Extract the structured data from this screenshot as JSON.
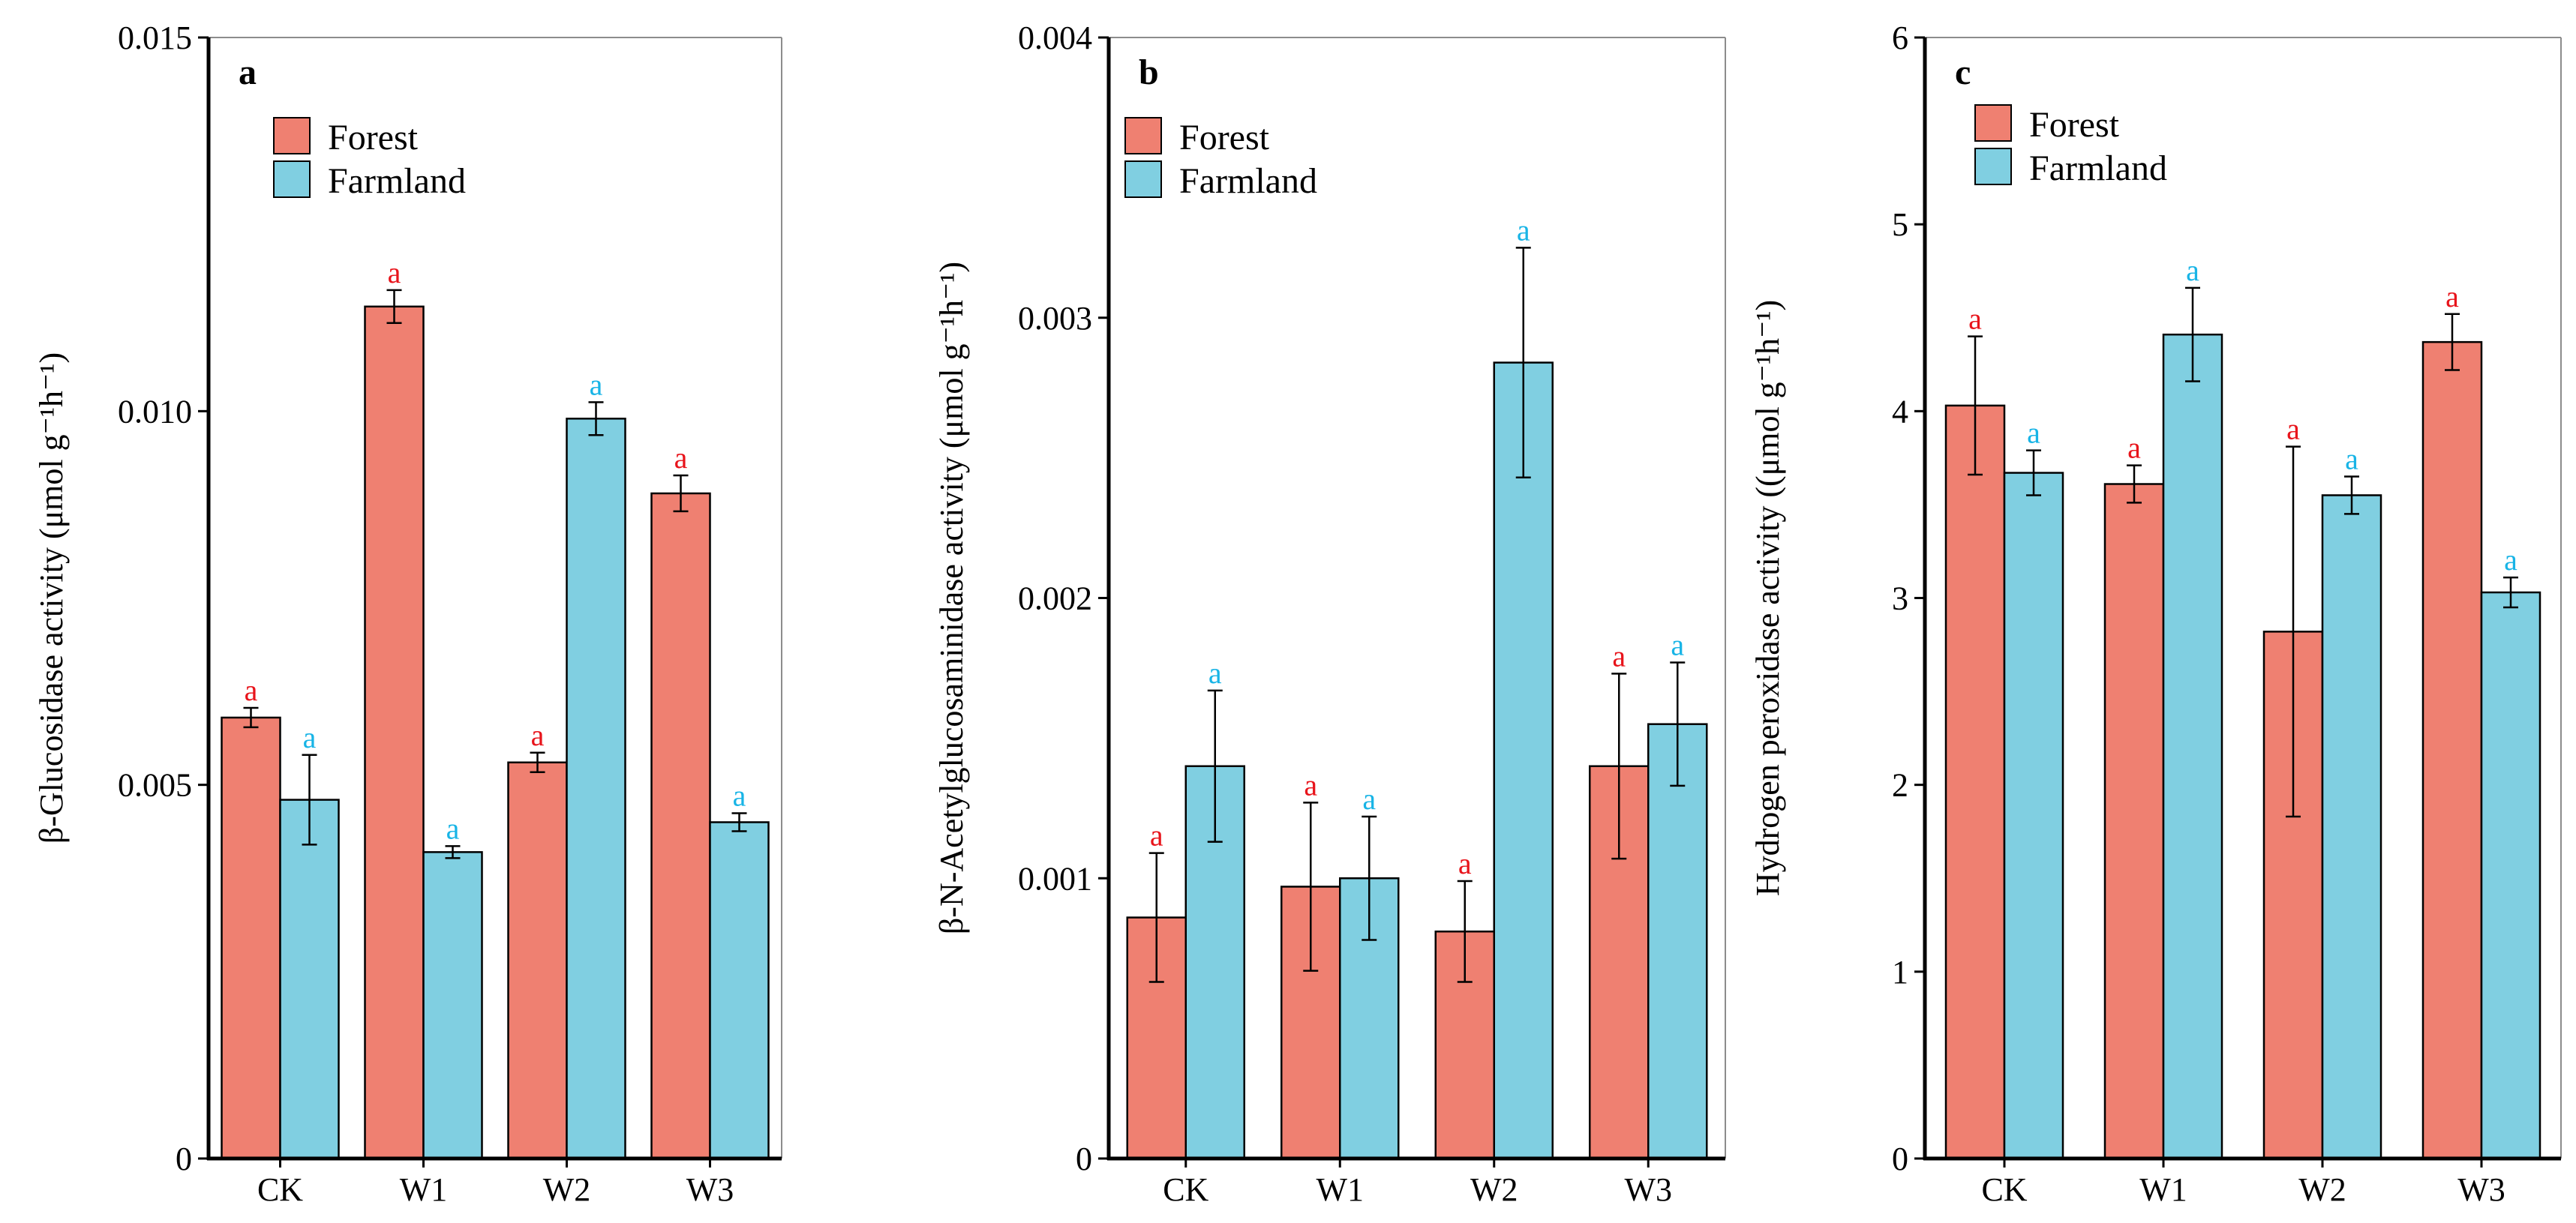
{
  "colors": {
    "forest": "#ef8071",
    "farmland": "#80cfe1",
    "forest_letter": "#e8141b",
    "farmland_letter": "#18b4e6",
    "axis": "#000000",
    "panel_border": "#8c8c8c"
  },
  "legend": [
    "Forest",
    "Farmland"
  ],
  "chart_data": [
    {
      "type": "bar",
      "panel": "a",
      "ylabel": "β-Glucosidase activity (μmol g⁻¹h⁻¹)",
      "xlabel": "",
      "categories": [
        "CK",
        "W1",
        "W2",
        "W3"
      ],
      "ylim": [
        0,
        0.015
      ],
      "yticks": [
        0,
        0.005,
        0.01,
        0.015
      ],
      "ytick_labels": [
        "0",
        "0.005",
        "0.010",
        "0.015"
      ],
      "series": [
        {
          "name": "Forest",
          "values": [
            0.0059,
            0.0114,
            0.0053,
            0.0089
          ],
          "errors": [
            0.00013,
            0.00022,
            0.00013,
            0.00024
          ],
          "letters": [
            "a",
            "a",
            "a",
            "a"
          ]
        },
        {
          "name": "Farmland",
          "values": [
            0.0048,
            0.0041,
            0.0099,
            0.0045
          ],
          "errors": [
            0.0006,
            8e-05,
            0.00022,
            0.00012
          ],
          "letters": [
            "a",
            "a",
            "a",
            "a"
          ]
        }
      ]
    },
    {
      "type": "bar",
      "panel": "b",
      "ylabel": "β-N-Acetylglucosaminidase activity (μmol g⁻¹h⁻¹)",
      "xlabel": "",
      "categories": [
        "CK",
        "W1",
        "W2",
        "W3"
      ],
      "ylim": [
        0,
        0.004
      ],
      "yticks": [
        0,
        0.001,
        0.002,
        0.003,
        0.004
      ],
      "ytick_labels": [
        "0",
        "0.001",
        "0.002",
        "0.003",
        "0.004"
      ],
      "series": [
        {
          "name": "Forest",
          "values": [
            0.00086,
            0.00097,
            0.00081,
            0.0014
          ],
          "errors": [
            0.00023,
            0.0003,
            0.00018,
            0.00033
          ],
          "letters": [
            "a",
            "a",
            "a",
            "a"
          ]
        },
        {
          "name": "Farmland",
          "values": [
            0.0014,
            0.001,
            0.00284,
            0.00155
          ],
          "errors": [
            0.00027,
            0.00022,
            0.00041,
            0.00022
          ],
          "letters": [
            "a",
            "a",
            "a",
            "a"
          ]
        }
      ]
    },
    {
      "type": "bar",
      "panel": "c",
      "ylabel": "Hydrogen peroxidase activity ((μmol g⁻¹h⁻¹)",
      "xlabel": "",
      "categories": [
        "CK",
        "W1",
        "W2",
        "W3"
      ],
      "ylim": [
        0,
        6
      ],
      "yticks": [
        0,
        1,
        2,
        3,
        4,
        5,
        6
      ],
      "ytick_labels": [
        "0",
        "1",
        "2",
        "3",
        "4",
        "5",
        "6"
      ],
      "series": [
        {
          "name": "Forest",
          "values": [
            4.03,
            3.61,
            2.82,
            4.37
          ],
          "errors": [
            0.37,
            0.1,
            0.99,
            0.15
          ],
          "letters": [
            "a",
            "a",
            "a",
            "a"
          ]
        },
        {
          "name": "Farmland",
          "values": [
            3.67,
            4.41,
            3.55,
            3.03
          ],
          "errors": [
            0.12,
            0.25,
            0.1,
            0.08
          ],
          "letters": [
            "a",
            "a",
            "a",
            "a"
          ]
        }
      ]
    }
  ]
}
